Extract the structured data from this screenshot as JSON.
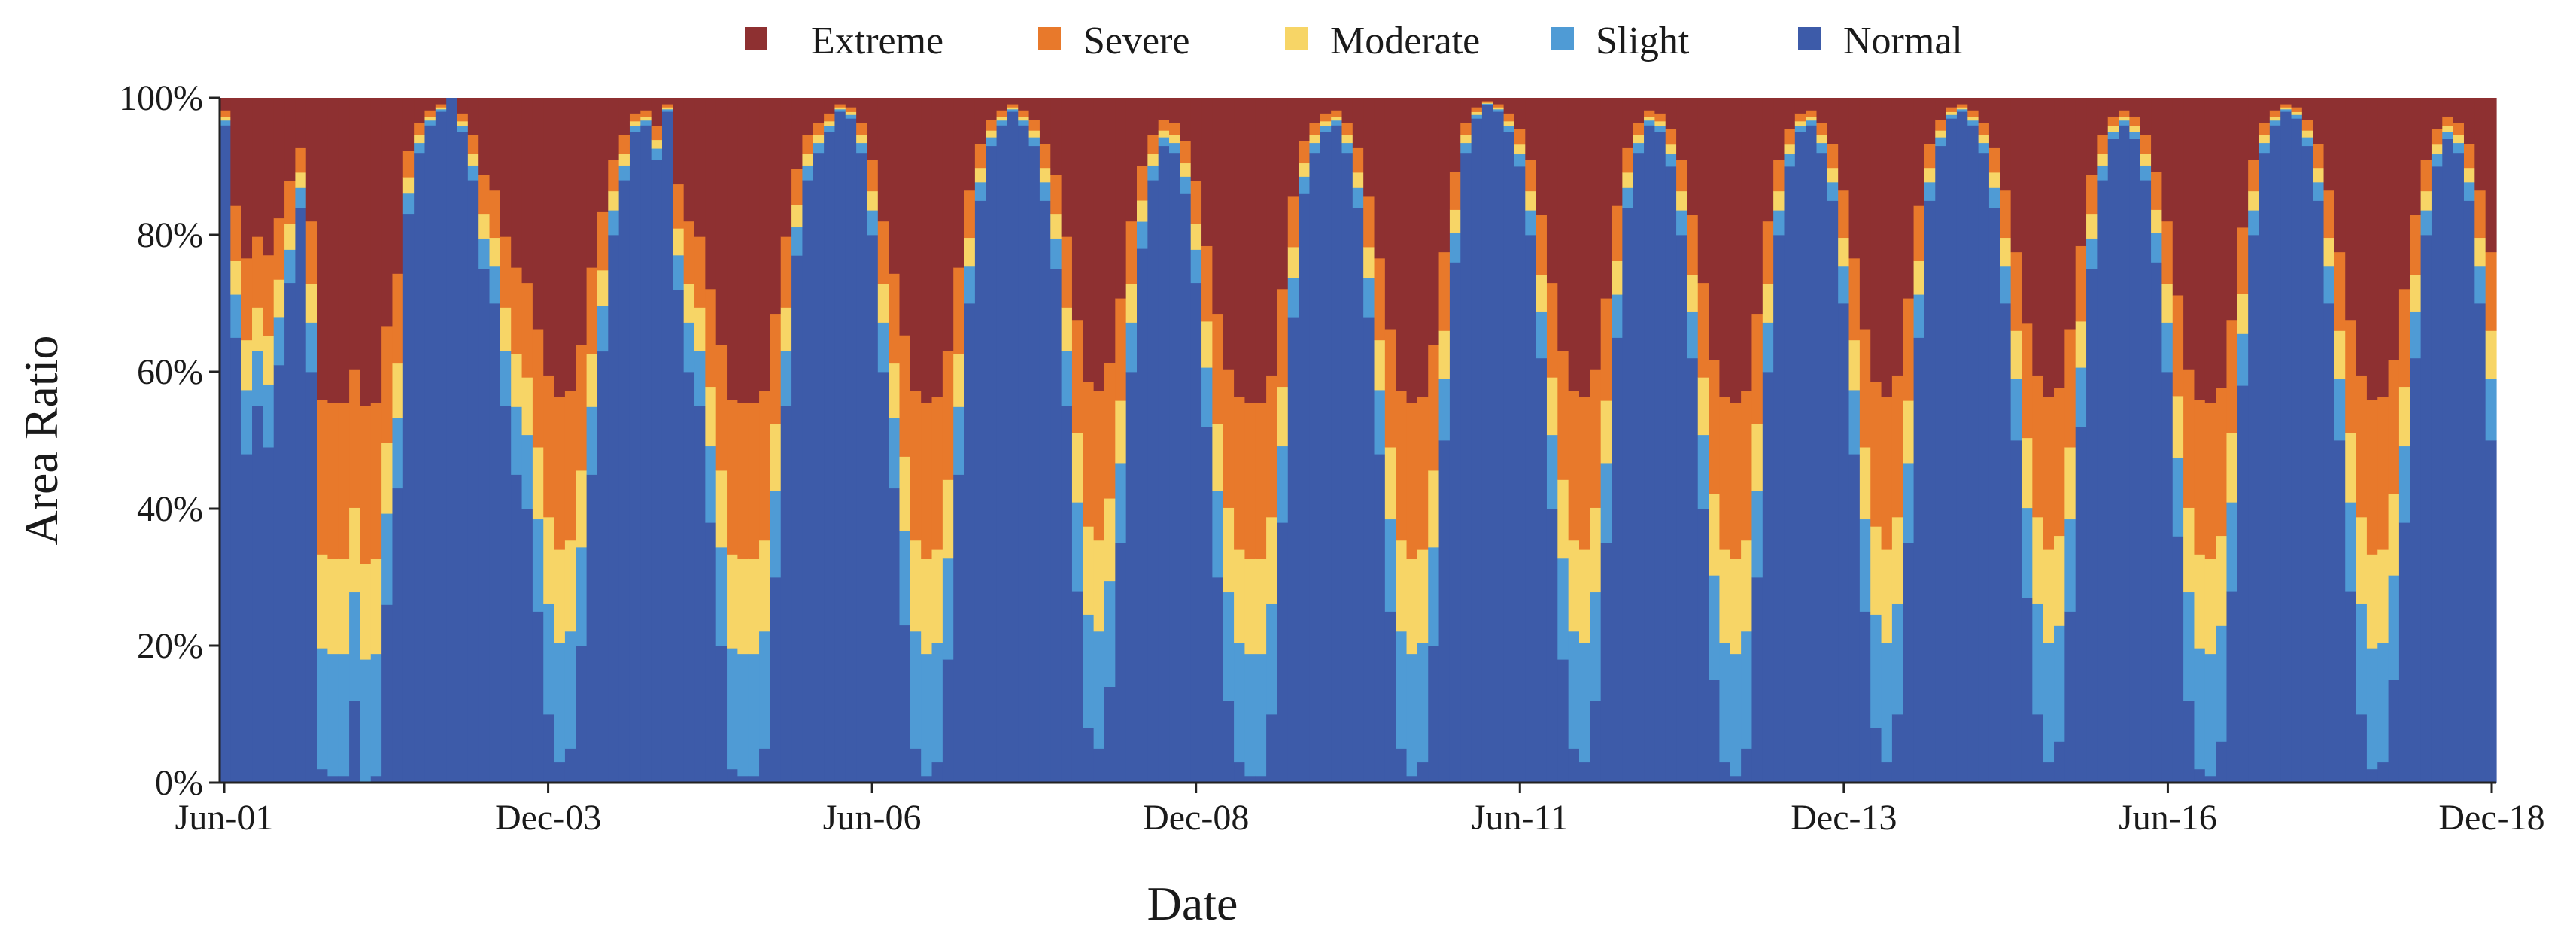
{
  "chart_data": {
    "type": "bar",
    "subtype": "stacked-100-percent",
    "title": "",
    "xlabel": "Date",
    "ylabel": "Area Ratio",
    "ylim": [
      0,
      100
    ],
    "yticks": [
      "0%",
      "20%",
      "40%",
      "60%",
      "80%",
      "100%"
    ],
    "xtick_labels": [
      "Jun-01",
      "Dec-03",
      "Jun-06",
      "Dec-08",
      "Jun-11",
      "Dec-13",
      "Jun-16",
      "Dec-18"
    ],
    "x_range": [
      "Jun-01",
      "Dec-18"
    ],
    "periods": 211,
    "grid": false,
    "legend": "top",
    "categories": [
      "Extreme",
      "Severe",
      "Moderate",
      "Slight",
      "Normal"
    ],
    "colors": {
      "Extreme": "#8e3031",
      "Severe": "#e8792b",
      "Moderate": "#f7d566",
      "Slight": "#4f9bd5",
      "Normal": "#3d5ba9"
    },
    "normal_series": [
      96,
      65,
      48,
      55,
      49,
      61,
      73,
      84,
      60,
      2,
      1,
      1,
      12,
      0,
      1,
      26,
      43,
      83,
      92,
      96,
      98,
      100,
      95,
      88,
      75,
      70,
      55,
      45,
      40,
      25,
      10,
      3,
      5,
      20,
      45,
      63,
      80,
      88,
      95,
      96,
      91,
      98,
      72,
      60,
      55,
      38,
      20,
      2,
      1,
      1,
      5,
      30,
      55,
      77,
      88,
      92,
      95,
      98,
      97,
      92,
      80,
      60,
      43,
      23,
      5,
      1,
      3,
      18,
      45,
      70,
      85,
      93,
      96,
      98,
      96,
      93,
      85,
      75,
      55,
      28,
      8,
      5,
      14,
      35,
      60,
      78,
      88,
      93,
      92,
      86,
      73,
      52,
      30,
      12,
      3,
      1,
      1,
      10,
      38,
      68,
      86,
      92,
      95,
      96,
      92,
      84,
      68,
      48,
      25,
      5,
      1,
      3,
      20,
      50,
      76,
      92,
      97,
      99,
      98,
      95,
      90,
      80,
      62,
      40,
      18,
      5,
      3,
      12,
      35,
      65,
      84,
      92,
      96,
      95,
      90,
      80,
      62,
      40,
      15,
      3,
      1,
      5,
      30,
      60,
      80,
      90,
      95,
      96,
      92,
      85,
      70,
      48,
      25,
      8,
      3,
      10,
      35,
      65,
      85,
      93,
      97,
      98,
      96,
      92,
      84,
      70,
      50,
      27,
      10,
      3,
      6,
      25,
      52,
      75,
      88,
      94,
      96,
      94,
      88,
      76,
      60,
      36,
      12,
      2,
      1,
      6,
      28,
      58,
      80,
      92,
      96,
      98,
      97,
      93,
      85,
      70,
      50,
      28,
      10,
      2,
      3,
      15,
      38,
      62,
      80,
      90,
      94,
      92,
      85,
      70,
      50
    ]
  },
  "legend": {
    "extreme": "Extreme",
    "severe": "Severe",
    "moderate": "Moderate",
    "slight": "Slight",
    "normal": "Normal"
  },
  "axes": {
    "x_title": "Date",
    "y_title": "Area Ratio"
  }
}
